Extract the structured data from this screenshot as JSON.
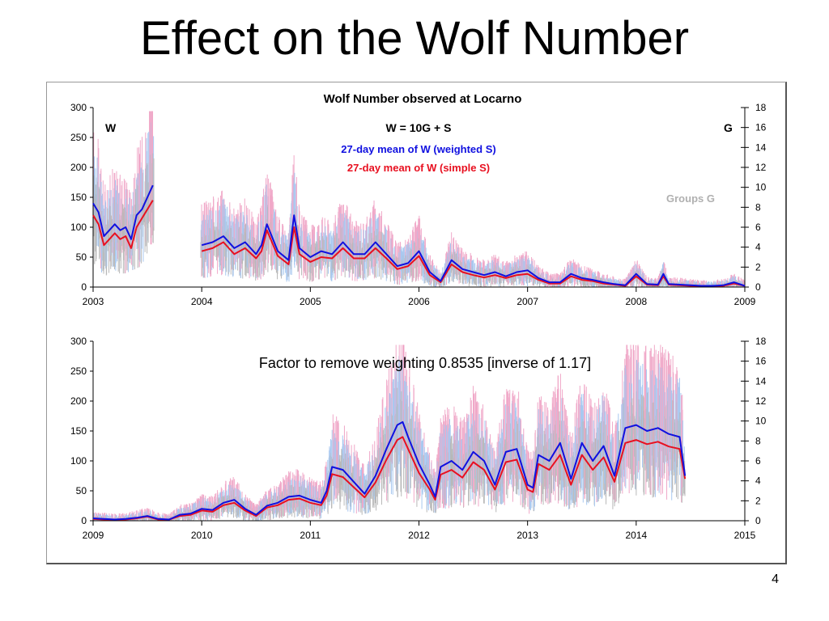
{
  "slide": {
    "title": "Effect on the Wolf Number",
    "page_number": "4"
  },
  "colors": {
    "weighted": "#1010e0",
    "simple": "#e81020",
    "groups": "#b8b8b8",
    "daily_weighted": "#a8c8f0",
    "daily_simple": "#f0a8c8"
  },
  "chart_data": [
    {
      "type": "line",
      "title": "Wolf Number observed at Locarno",
      "left_axis_label": "W",
      "right_axis_label": "G",
      "formula": "W = 10G + S",
      "legend": [
        {
          "label": "27-day mean of W (weighted  S)",
          "color": "#1010e0"
        },
        {
          "label": "27-day mean of W (simple  S)",
          "color": "#e81020"
        }
      ],
      "groups_label": "Groups G",
      "xlim": [
        2003,
        2009
      ],
      "x_ticks": [
        "2003",
        "2004",
        "2005",
        "2006",
        "2007",
        "2008",
        "2009"
      ],
      "ylim": [
        0,
        300
      ],
      "y_ticks": [
        "0",
        "50",
        "100",
        "150",
        "200",
        "250",
        "300"
      ],
      "y2lim": [
        0,
        18
      ],
      "y2_ticks": [
        "0",
        "2",
        "4",
        "6",
        "8",
        "10",
        "12",
        "14",
        "16",
        "18"
      ],
      "series": [
        {
          "name": "27-day mean of W (weighted  S)",
          "x": [
            2003.0,
            2003.05,
            2003.1,
            2003.15,
            2003.2,
            2003.25,
            2003.3,
            2003.35,
            2003.4,
            2003.45,
            2003.5,
            2003.55,
            2004.0,
            2004.1,
            2004.2,
            2004.3,
            2004.4,
            2004.5,
            2004.55,
            2004.6,
            2004.7,
            2004.8,
            2004.85,
            2004.9,
            2005.0,
            2005.1,
            2005.2,
            2005.3,
            2005.4,
            2005.5,
            2005.6,
            2005.7,
            2005.8,
            2005.9,
            2006.0,
            2006.1,
            2006.2,
            2006.3,
            2006.4,
            2006.5,
            2006.6,
            2006.7,
            2006.8,
            2006.9,
            2007.0,
            2007.1,
            2007.2,
            2007.3,
            2007.4,
            2007.5,
            2007.6,
            2007.7,
            2007.8,
            2007.9,
            2008.0,
            2008.1,
            2008.2,
            2008.25,
            2008.3,
            2008.4,
            2008.5,
            2008.6,
            2008.7,
            2008.8,
            2008.9,
            2009.0
          ],
          "y": [
            140,
            125,
            85,
            95,
            105,
            95,
            100,
            80,
            120,
            130,
            150,
            170,
            70,
            75,
            85,
            65,
            75,
            55,
            70,
            105,
            60,
            45,
            120,
            65,
            50,
            60,
            55,
            75,
            55,
            55,
            75,
            55,
            35,
            40,
            60,
            25,
            10,
            45,
            30,
            25,
            20,
            25,
            18,
            25,
            28,
            15,
            8,
            8,
            22,
            15,
            12,
            8,
            5,
            3,
            22,
            5,
            4,
            22,
            5,
            4,
            3,
            2,
            2,
            3,
            8,
            2
          ]
        },
        {
          "name": "27-day mean of W (simple  S)",
          "x": [
            2003.0,
            2003.05,
            2003.1,
            2003.15,
            2003.2,
            2003.25,
            2003.3,
            2003.35,
            2003.4,
            2003.45,
            2003.5,
            2003.55,
            2004.0,
            2004.1,
            2004.2,
            2004.3,
            2004.4,
            2004.5,
            2004.55,
            2004.6,
            2004.7,
            2004.8,
            2004.85,
            2004.9,
            2005.0,
            2005.1,
            2005.2,
            2005.3,
            2005.4,
            2005.5,
            2005.6,
            2005.7,
            2005.8,
            2005.9,
            2006.0,
            2006.1,
            2006.2,
            2006.3,
            2006.4,
            2006.5,
            2006.6,
            2006.7,
            2006.8,
            2006.9,
            2007.0,
            2007.1,
            2007.2,
            2007.3,
            2007.4,
            2007.5,
            2007.6,
            2007.7,
            2007.8,
            2007.9,
            2008.0,
            2008.1,
            2008.2,
            2008.25,
            2008.3,
            2008.4,
            2008.5,
            2008.6,
            2008.7,
            2008.8,
            2008.9,
            2009.0
          ],
          "y": [
            120,
            105,
            70,
            80,
            90,
            80,
            85,
            65,
            100,
            115,
            130,
            145,
            60,
            65,
            75,
            55,
            65,
            48,
            60,
            95,
            52,
            38,
            100,
            55,
            42,
            50,
            48,
            65,
            48,
            48,
            65,
            48,
            30,
            35,
            52,
            20,
            8,
            38,
            25,
            20,
            16,
            20,
            15,
            20,
            22,
            12,
            6,
            6,
            18,
            12,
            10,
            6,
            4,
            2,
            18,
            4,
            3,
            18,
            4,
            3,
            2,
            2,
            2,
            2,
            6,
            2
          ]
        }
      ]
    },
    {
      "type": "line",
      "annotation": "Factor to remove weighting 0.8535 [inverse of 1.17]",
      "xlim": [
        2009,
        2015
      ],
      "x_ticks": [
        "2009",
        "2010",
        "2011",
        "2012",
        "2013",
        "2014",
        "2015"
      ],
      "ylim": [
        0,
        300
      ],
      "y_ticks": [
        "0",
        "50",
        "100",
        "150",
        "200",
        "250",
        "300"
      ],
      "y2lim": [
        0,
        18
      ],
      "y2_ticks": [
        "0",
        "2",
        "4",
        "6",
        "8",
        "10",
        "12",
        "14",
        "16",
        "18"
      ],
      "series": [
        {
          "name": "27-day mean of W (weighted  S)",
          "x": [
            2009.0,
            2009.1,
            2009.2,
            2009.3,
            2009.4,
            2009.5,
            2009.6,
            2009.7,
            2009.8,
            2009.9,
            2010.0,
            2010.1,
            2010.2,
            2010.3,
            2010.4,
            2010.5,
            2010.6,
            2010.7,
            2010.8,
            2010.9,
            2011.0,
            2011.1,
            2011.15,
            2011.2,
            2011.3,
            2011.4,
            2011.5,
            2011.6,
            2011.7,
            2011.8,
            2011.85,
            2011.9,
            2012.0,
            2012.1,
            2012.15,
            2012.2,
            2012.3,
            2012.4,
            2012.5,
            2012.6,
            2012.7,
            2012.8,
            2012.9,
            2013.0,
            2013.05,
            2013.1,
            2013.2,
            2013.3,
            2013.4,
            2013.5,
            2013.6,
            2013.7,
            2013.8,
            2013.9,
            2014.0,
            2014.1,
            2014.2,
            2014.3,
            2014.4,
            2014.45
          ],
          "y": [
            4,
            3,
            2,
            3,
            5,
            8,
            3,
            2,
            10,
            12,
            20,
            18,
            30,
            35,
            20,
            10,
            25,
            30,
            40,
            42,
            35,
            30,
            50,
            90,
            85,
            65,
            45,
            75,
            120,
            160,
            165,
            140,
            95,
            60,
            40,
            90,
            100,
            85,
            115,
            100,
            60,
            115,
            120,
            60,
            55,
            110,
            100,
            130,
            70,
            130,
            100,
            125,
            75,
            155,
            160,
            150,
            155,
            145,
            140,
            75
          ]
        },
        {
          "name": "27-day mean of W (simple  S)",
          "x": [
            2009.0,
            2009.1,
            2009.2,
            2009.3,
            2009.4,
            2009.5,
            2009.6,
            2009.7,
            2009.8,
            2009.9,
            2010.0,
            2010.1,
            2010.2,
            2010.3,
            2010.4,
            2010.5,
            2010.6,
            2010.7,
            2010.8,
            2010.9,
            2011.0,
            2011.1,
            2011.15,
            2011.2,
            2011.3,
            2011.4,
            2011.5,
            2011.6,
            2011.7,
            2011.8,
            2011.85,
            2011.9,
            2012.0,
            2012.1,
            2012.15,
            2012.2,
            2012.3,
            2012.4,
            2012.5,
            2012.6,
            2012.7,
            2012.8,
            2012.9,
            2013.0,
            2013.05,
            2013.1,
            2013.2,
            2013.3,
            2013.4,
            2013.5,
            2013.6,
            2013.7,
            2013.8,
            2013.9,
            2014.0,
            2014.1,
            2014.2,
            2014.3,
            2014.4,
            2014.45
          ],
          "y": [
            3,
            2,
            2,
            2,
            4,
            7,
            2,
            2,
            8,
            10,
            17,
            15,
            26,
            30,
            17,
            8,
            22,
            26,
            35,
            37,
            30,
            26,
            42,
            78,
            73,
            56,
            39,
            64,
            102,
            135,
            140,
            120,
            80,
            52,
            35,
            77,
            85,
            72,
            98,
            85,
            52,
            98,
            102,
            52,
            48,
            95,
            85,
            110,
            60,
            110,
            85,
            106,
            65,
            130,
            135,
            128,
            132,
            124,
            120,
            70
          ]
        }
      ]
    }
  ]
}
